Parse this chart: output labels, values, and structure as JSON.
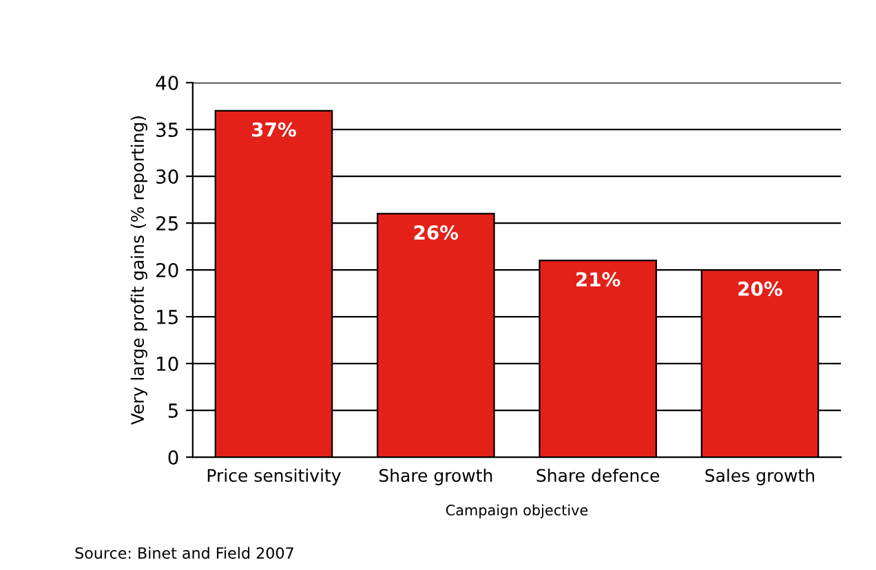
{
  "chart_data": {
    "type": "bar",
    "categories": [
      "Price sensitivity",
      "Share growth",
      "Share defence",
      "Sales growth"
    ],
    "values": [
      37,
      26,
      21,
      20
    ],
    "value_labels": [
      "37%",
      "26%",
      "21%",
      "20%"
    ],
    "color": "#e32119",
    "xlabel": "Campaign objective",
    "ylabel": "Very large profit gains (% reporting)",
    "ylim": [
      0,
      40
    ],
    "yticks": [
      0,
      5,
      10,
      15,
      20,
      25,
      30,
      35,
      40
    ],
    "grid": "y",
    "annotations": [
      "Source: Binet and Field 2007"
    ]
  }
}
